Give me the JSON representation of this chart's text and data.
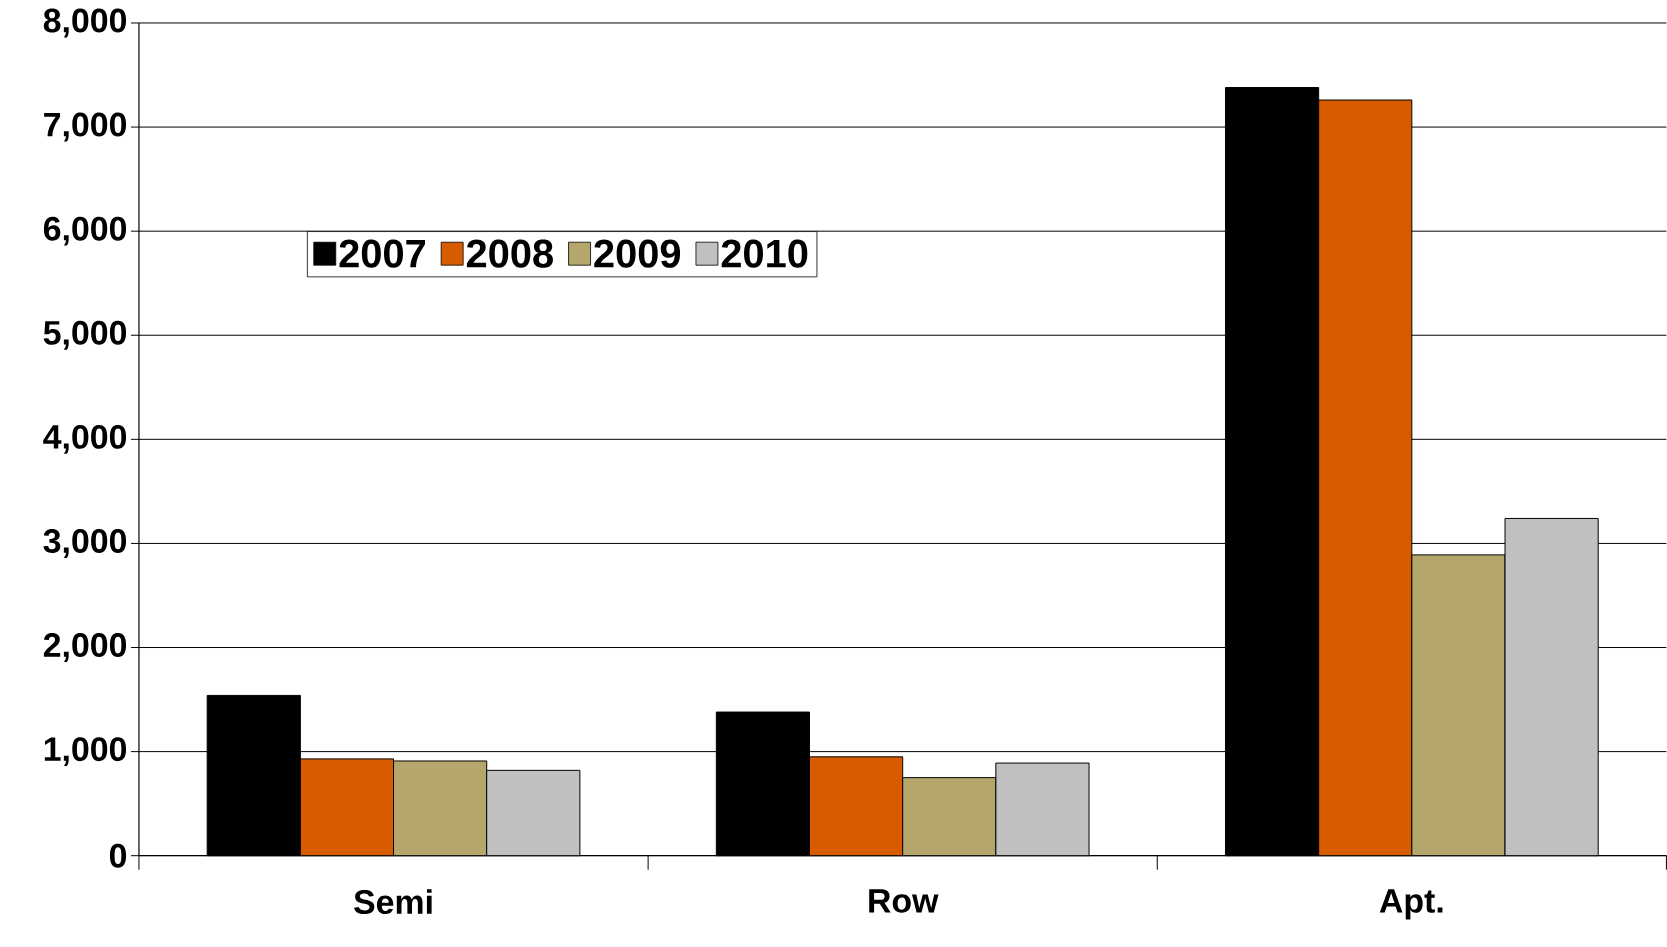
{
  "chart_data": {
    "type": "bar",
    "categories": [
      "Semi",
      "Row",
      "Apt."
    ],
    "series": [
      {
        "name": "2007",
        "color": "#000000",
        "values": [
          1540,
          1380,
          7380
        ]
      },
      {
        "name": "2008",
        "color": "#d95b00",
        "values": [
          930,
          950,
          7260
        ]
      },
      {
        "name": "2009",
        "color": "#b5a76c",
        "values": [
          910,
          750,
          2890
        ]
      },
      {
        "name": "2010",
        "color": "#c0c0c0",
        "values": [
          820,
          890,
          3240
        ]
      }
    ],
    "ylim": [
      0,
      8000
    ],
    "yticks": [
      {
        "value": 0,
        "label": "0"
      },
      {
        "value": 1000,
        "label": "1,000"
      },
      {
        "value": 2000,
        "label": "2,000"
      },
      {
        "value": 3000,
        "label": "3,000"
      },
      {
        "value": 4000,
        "label": "4,000"
      },
      {
        "value": 5000,
        "label": "5,000"
      },
      {
        "value": 6000,
        "label": "6,000"
      },
      {
        "value": 7000,
        "label": "7,000"
      },
      {
        "value": 8000,
        "label": "8,000"
      }
    ],
    "grid": "y",
    "legend": "top left"
  }
}
